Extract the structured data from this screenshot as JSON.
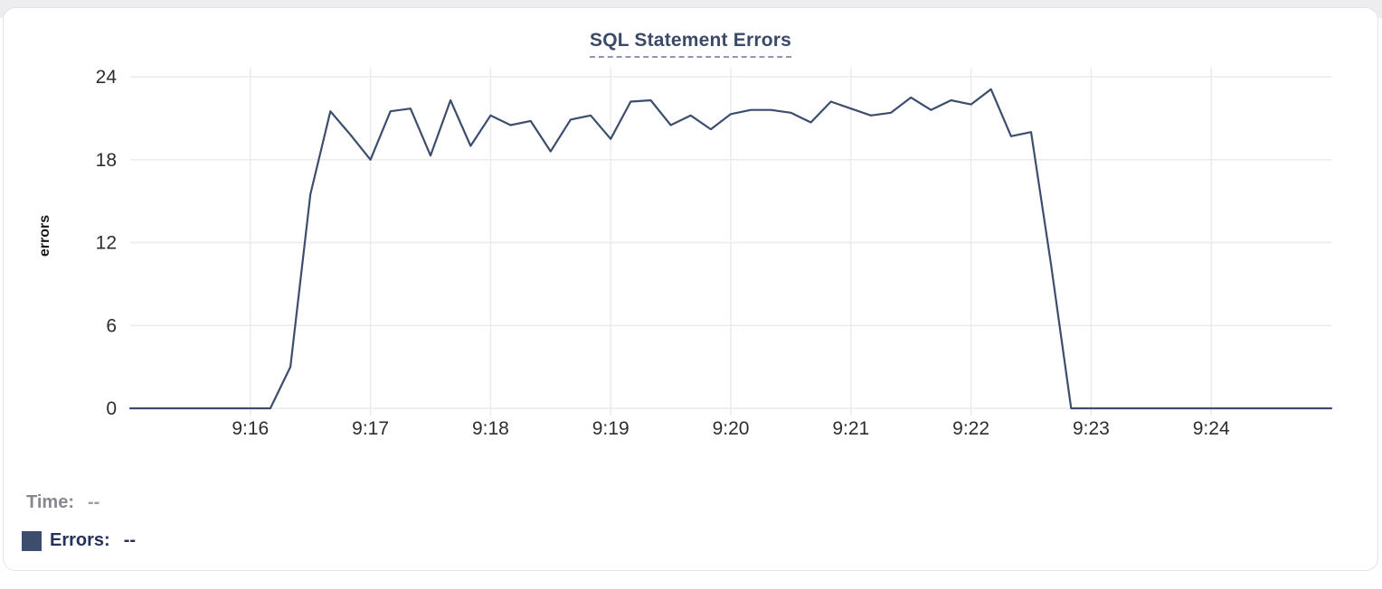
{
  "chart_data": {
    "type": "line",
    "title": "SQL Statement Errors",
    "ylabel": "errors",
    "ylim": [
      0,
      24
    ],
    "y_ticks": [
      0,
      6,
      12,
      18,
      24
    ],
    "x_ticks": [
      "9:16",
      "9:17",
      "9:18",
      "9:19",
      "9:20",
      "9:21",
      "9:22",
      "9:23",
      "9:24"
    ],
    "x_tick_seconds": [
      60,
      120,
      180,
      240,
      300,
      360,
      420,
      480,
      540
    ],
    "x_axis_start_time": "9:15",
    "x_axis_end_time": "9:25",
    "x_span_seconds": [
      0,
      600
    ],
    "sample_interval_seconds": 10,
    "grid_on": true,
    "grid_color": "#ebebed",
    "tick_color": "#2d2d2d",
    "legend_position": "bottom-left",
    "series": [
      {
        "name": "Errors",
        "color": "#3d4d6e",
        "values": [
          0,
          0,
          0,
          0,
          0,
          0,
          0,
          0,
          3,
          15.5,
          21.5,
          19.8,
          18,
          21.5,
          21.7,
          18.3,
          22.3,
          19,
          21.2,
          20.5,
          20.8,
          18.6,
          20.9,
          21.2,
          19.5,
          22.2,
          22.3,
          20.5,
          21.2,
          20.2,
          21.3,
          21.6,
          21.6,
          21.4,
          20.7,
          22.2,
          21.7,
          21.2,
          21.4,
          22.5,
          21.6,
          22.3,
          22,
          23.1,
          19.7,
          20,
          10.4,
          0,
          0,
          0,
          0,
          0,
          0,
          0,
          0,
          0,
          0,
          0,
          0,
          0,
          0
        ]
      }
    ]
  },
  "legend": {
    "time_label": "Time:",
    "time_value": "--",
    "errors_label": "Errors:",
    "errors_value": "--"
  },
  "colors": {
    "series_line": "#3d4d6e",
    "title_text": "#3b4a68",
    "title_underline": "#9099b4",
    "card_border": "#e4e4e6",
    "page_strip": "#ededef"
  }
}
